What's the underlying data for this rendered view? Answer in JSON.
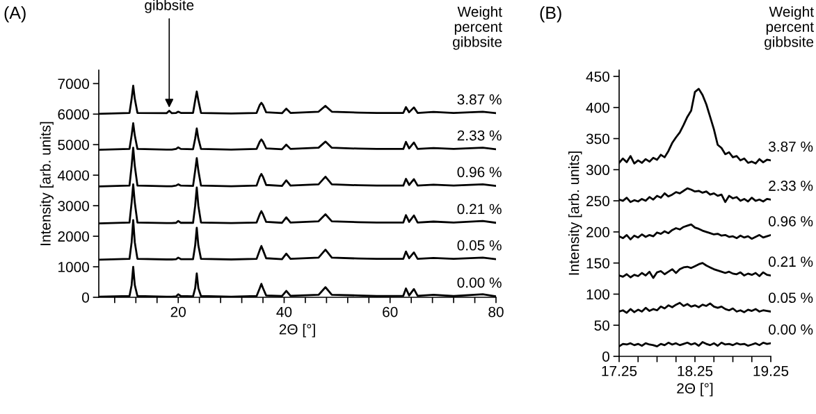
{
  "chart_data": [
    {
      "type": "line",
      "title": "(A)",
      "xlabel": "2Θ [°]",
      "ylabel": "Intensity [arb. units]",
      "legend": false,
      "grid": false,
      "marker": "none",
      "line_style": "solid",
      "xlim": [
        5,
        80
      ],
      "ylim": [
        0,
        7440
      ],
      "xticks": [
        {
          "value": 8,
          "label": null
        },
        {
          "value": 12,
          "label": null
        },
        {
          "value": 16,
          "label": null
        },
        20,
        {
          "value": 24,
          "label": null
        },
        {
          "value": 28,
          "label": null
        },
        {
          "value": 32,
          "label": null
        },
        {
          "value": 36,
          "label": null
        },
        40,
        {
          "value": 44,
          "label": null
        },
        {
          "value": 48,
          "label": null
        },
        {
          "value": 52,
          "label": null
        },
        {
          "value": 56,
          "label": null
        },
        60,
        {
          "value": 64,
          "label": null
        },
        {
          "value": 68,
          "label": null
        },
        {
          "value": 72,
          "label": null
        },
        {
          "value": 76,
          "label": null
        },
        80
      ],
      "yticks": [
        0,
        1000,
        2000,
        3000,
        4000,
        5000,
        6000,
        7000
      ],
      "annotations": [
        "Weight percent gibbsite",
        {
          "text": "gibbsite",
          "x": 18.3,
          "y": 6150
        }
      ],
      "x": [
        5,
        10.8,
        11.2,
        11.5,
        11.8,
        12.3,
        17.8,
        18.3,
        18.8,
        19.6,
        20,
        20.5,
        22.8,
        23.2,
        23.5,
        23.8,
        24.3,
        30,
        34.8,
        35.4,
        35.7,
        36.0,
        36.6,
        39.6,
        40.4,
        41.2,
        46.5,
        47.8,
        49,
        54,
        57.5,
        62.5,
        63,
        63.6,
        64.5,
        65.2,
        68.2,
        72,
        77.5,
        80
      ],
      "series": [
        {
          "name": "3.87 %",
          "color": "#000000",
          "values": [
            6010,
            6040,
            6500,
            6930,
            6500,
            6040,
            6030,
            6110,
            6030,
            6040,
            6080,
            6040,
            6040,
            6450,
            6740,
            6450,
            6040,
            6020,
            6040,
            6300,
            6370,
            6300,
            6060,
            6030,
            6180,
            6040,
            6080,
            6270,
            6080,
            6050,
            6040,
            6040,
            6230,
            6060,
            6220,
            6040,
            6070,
            6040,
            6080,
            6030
          ]
        },
        {
          "name": "2.33 %",
          "color": "#000000",
          "values": [
            4830,
            4860,
            5300,
            5700,
            5300,
            4860,
            4840,
            4840,
            4840,
            4860,
            4910,
            4860,
            4850,
            5200,
            5530,
            5200,
            4860,
            4840,
            4860,
            5100,
            5170,
            5100,
            4880,
            4850,
            5000,
            4860,
            4900,
            5100,
            4900,
            4870,
            4860,
            4860,
            5090,
            4880,
            5070,
            4860,
            4890,
            4860,
            4900,
            4850
          ]
        },
        {
          "name": "0.96 %",
          "color": "#000000",
          "values": [
            3630,
            3660,
            4300,
            4900,
            4300,
            3660,
            3640,
            3640,
            3640,
            3660,
            3700,
            3660,
            3650,
            4150,
            4560,
            4150,
            3660,
            3640,
            3660,
            3950,
            4040,
            3950,
            3680,
            3650,
            3830,
            3660,
            3700,
            3950,
            3700,
            3670,
            3660,
            3660,
            3880,
            3680,
            3870,
            3660,
            3690,
            3660,
            3700,
            3650
          ]
        },
        {
          "name": "0.21 %",
          "color": "#000000",
          "values": [
            2420,
            2450,
            3100,
            3700,
            3100,
            2450,
            2430,
            2430,
            2430,
            2440,
            2500,
            2440,
            2440,
            3000,
            3600,
            3000,
            2450,
            2430,
            2450,
            2720,
            2820,
            2720,
            2470,
            2440,
            2620,
            2450,
            2490,
            2720,
            2490,
            2460,
            2450,
            2450,
            2690,
            2470,
            2680,
            2450,
            2480,
            2450,
            2500,
            2440
          ]
        },
        {
          "name": "0.05 %",
          "color": "#000000",
          "values": [
            1230,
            1260,
            1800,
            2530,
            1800,
            1260,
            1240,
            1240,
            1240,
            1250,
            1300,
            1250,
            1250,
            1700,
            2280,
            1700,
            1260,
            1240,
            1260,
            1550,
            1680,
            1550,
            1280,
            1250,
            1430,
            1260,
            1300,
            1560,
            1300,
            1270,
            1260,
            1260,
            1500,
            1280,
            1470,
            1260,
            1290,
            1260,
            1300,
            1250
          ]
        },
        {
          "name": "0.00 %",
          "color": "#000000",
          "values": [
            20,
            40,
            400,
            1000,
            400,
            40,
            20,
            20,
            20,
            30,
            100,
            40,
            30,
            300,
            780,
            300,
            40,
            20,
            40,
            300,
            440,
            300,
            60,
            40,
            210,
            50,
            80,
            330,
            80,
            60,
            40,
            50,
            290,
            60,
            270,
            50,
            80,
            40,
            100,
            30
          ]
        }
      ]
    },
    {
      "type": "line",
      "title": "(B)",
      "xlabel": "2Θ [°]",
      "ylabel": "Intensity [arb. units]",
      "legend": false,
      "grid": false,
      "marker": "none",
      "line_style": "solid",
      "xlim": [
        17.25,
        19.25
      ],
      "ylim": [
        0,
        460
      ],
      "xticks": [
        17.25,
        {
          "value": 17.5,
          "label": null
        },
        {
          "value": 17.75,
          "label": null
        },
        {
          "value": 18.0,
          "label": null
        },
        18.25,
        {
          "value": 18.5,
          "label": null
        },
        {
          "value": 18.75,
          "label": null
        },
        {
          "value": 19.0,
          "label": null
        },
        19.25
      ],
      "yticks": [
        0,
        50,
        100,
        150,
        200,
        250,
        300,
        350,
        400,
        450
      ],
      "annotations": [
        "Weight percent gibbsite"
      ],
      "x": [
        17.25,
        17.3,
        17.35,
        17.4,
        17.45,
        17.5,
        17.55,
        17.6,
        17.65,
        17.7,
        17.75,
        17.8,
        17.85,
        17.9,
        17.95,
        18.0,
        18.05,
        18.1,
        18.15,
        18.2,
        18.25,
        18.3,
        18.35,
        18.4,
        18.45,
        18.5,
        18.55,
        18.6,
        18.65,
        18.7,
        18.75,
        18.8,
        18.85,
        18.9,
        18.95,
        19.0,
        19.05,
        19.1,
        19.15,
        19.2,
        19.25
      ],
      "series": [
        {
          "name": "3.87 %",
          "color": "#000000",
          "values": [
            311,
            318,
            312,
            322,
            310,
            315,
            311,
            317,
            313,
            319,
            316,
            324,
            320,
            330,
            343,
            352,
            360,
            372,
            385,
            395,
            425,
            430,
            420,
            405,
            385,
            365,
            340,
            335,
            325,
            328,
            320,
            322,
            315,
            318,
            311,
            313,
            310,
            317,
            312,
            316,
            315
          ]
        },
        {
          "name": "2.33 %",
          "color": "#000000",
          "values": [
            252,
            250,
            255,
            248,
            251,
            249,
            253,
            250,
            256,
            252,
            258,
            255,
            262,
            257,
            260,
            264,
            262,
            266,
            270,
            268,
            265,
            266,
            263,
            265,
            260,
            262,
            258,
            260,
            248,
            258,
            254,
            256,
            250,
            253,
            249,
            255,
            250,
            252,
            249,
            253,
            252
          ]
        },
        {
          "name": "0.96 %",
          "color": "#000000",
          "values": [
            193,
            190,
            195,
            188,
            194,
            191,
            196,
            192,
            195,
            193,
            199,
            197,
            201,
            198,
            203,
            206,
            204,
            208,
            210,
            212,
            207,
            205,
            202,
            200,
            198,
            196,
            197,
            194,
            195,
            192,
            193,
            190,
            194,
            191,
            193,
            189,
            192,
            195,
            191,
            193,
            195
          ]
        },
        {
          "name": "0.21 %",
          "color": "#000000",
          "values": [
            130,
            128,
            132,
            127,
            131,
            129,
            134,
            130,
            136,
            126,
            135,
            137,
            132,
            136,
            140,
            134,
            140,
            143,
            144,
            142,
            145,
            148,
            150,
            146,
            143,
            140,
            138,
            136,
            134,
            136,
            133,
            132,
            135,
            130,
            133,
            131,
            134,
            129,
            135,
            131,
            130
          ]
        },
        {
          "name": "0.05 %",
          "color": "#000000",
          "values": [
            72,
            74,
            70,
            76,
            71,
            75,
            72,
            78,
            73,
            76,
            74,
            80,
            77,
            82,
            79,
            83,
            86,
            81,
            84,
            80,
            82,
            79,
            83,
            81,
            85,
            80,
            78,
            80,
            76,
            74,
            77,
            72,
            74,
            71,
            75,
            73,
            76,
            72,
            74,
            73,
            72
          ]
        },
        {
          "name": "0.00 %",
          "color": "#000000",
          "values": [
            16,
            20,
            19,
            21,
            18,
            20,
            17,
            21,
            19,
            18,
            16,
            20,
            18,
            22,
            19,
            21,
            18,
            20,
            22,
            19,
            21,
            17,
            23,
            20,
            18,
            21,
            17,
            22,
            19,
            20,
            18,
            21,
            19,
            20,
            17,
            19,
            21,
            18,
            22,
            20,
            21
          ]
        }
      ]
    }
  ]
}
